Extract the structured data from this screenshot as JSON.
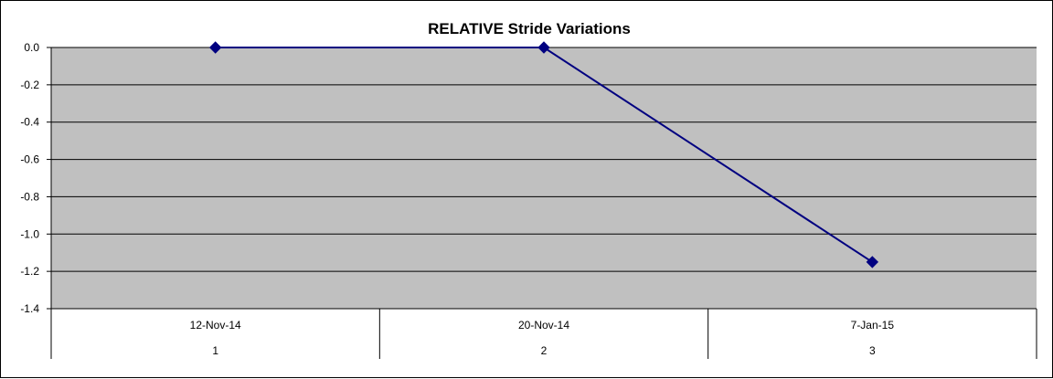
{
  "chart_data": {
    "type": "line",
    "title": "RELATIVE Stride Variations",
    "categories": [
      "12-Nov-14",
      "20-Nov-14",
      "7-Jan-15"
    ],
    "category_indices": [
      "1",
      "2",
      "3"
    ],
    "series": [
      {
        "values": [
          0.0,
          0.0,
          -1.15
        ],
        "color": "#000080",
        "marker": "diamond"
      }
    ],
    "ylim": [
      -1.4,
      0.0
    ],
    "yticks": [
      "0.0",
      "-0.2",
      "-0.4",
      "-0.6",
      "-0.8",
      "-1.0",
      "-1.2",
      "-1.4"
    ],
    "grid": true,
    "legend": "none",
    "plot_background": "#c0c0c0",
    "line_color": "#000080"
  }
}
